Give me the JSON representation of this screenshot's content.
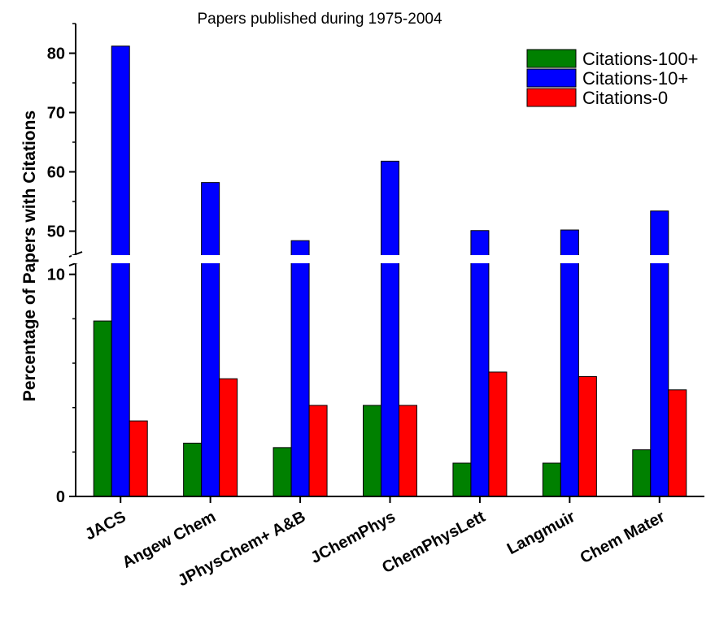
{
  "chart_data": {
    "type": "bar",
    "title": "Papers published during 1975-2004",
    "xlabel": "",
    "ylabel": "Percentage of Papers with Citations",
    "categories": [
      "JACS",
      "Angew Chem",
      "JPhysChem+ A&B",
      "JChemPhys",
      "ChemPhysLett",
      "Langmuir",
      "Chem Mater"
    ],
    "series": [
      {
        "name": "Citations-100+",
        "color": "#008000",
        "values": [
          7.9,
          2.4,
          2.2,
          4.1,
          1.5,
          1.5,
          2.1
        ]
      },
      {
        "name": "Citations-10+",
        "color": "#0000ff",
        "values": [
          81.2,
          58.2,
          48.4,
          61.8,
          50.1,
          50.2,
          53.4
        ]
      },
      {
        "name": "Citations-0",
        "color": "#ff0000",
        "values": [
          3.4,
          5.3,
          4.1,
          4.1,
          5.6,
          5.4,
          4.8
        ]
      }
    ],
    "y_axis_break": {
      "lower_range": [
        0,
        10.5
      ],
      "upper_range": [
        45,
        85
      ]
    },
    "yticks_lower": [
      0,
      10
    ],
    "yticks_upper": [
      50,
      60,
      70,
      80
    ],
    "legend_position": "top-right",
    "grid": false
  }
}
